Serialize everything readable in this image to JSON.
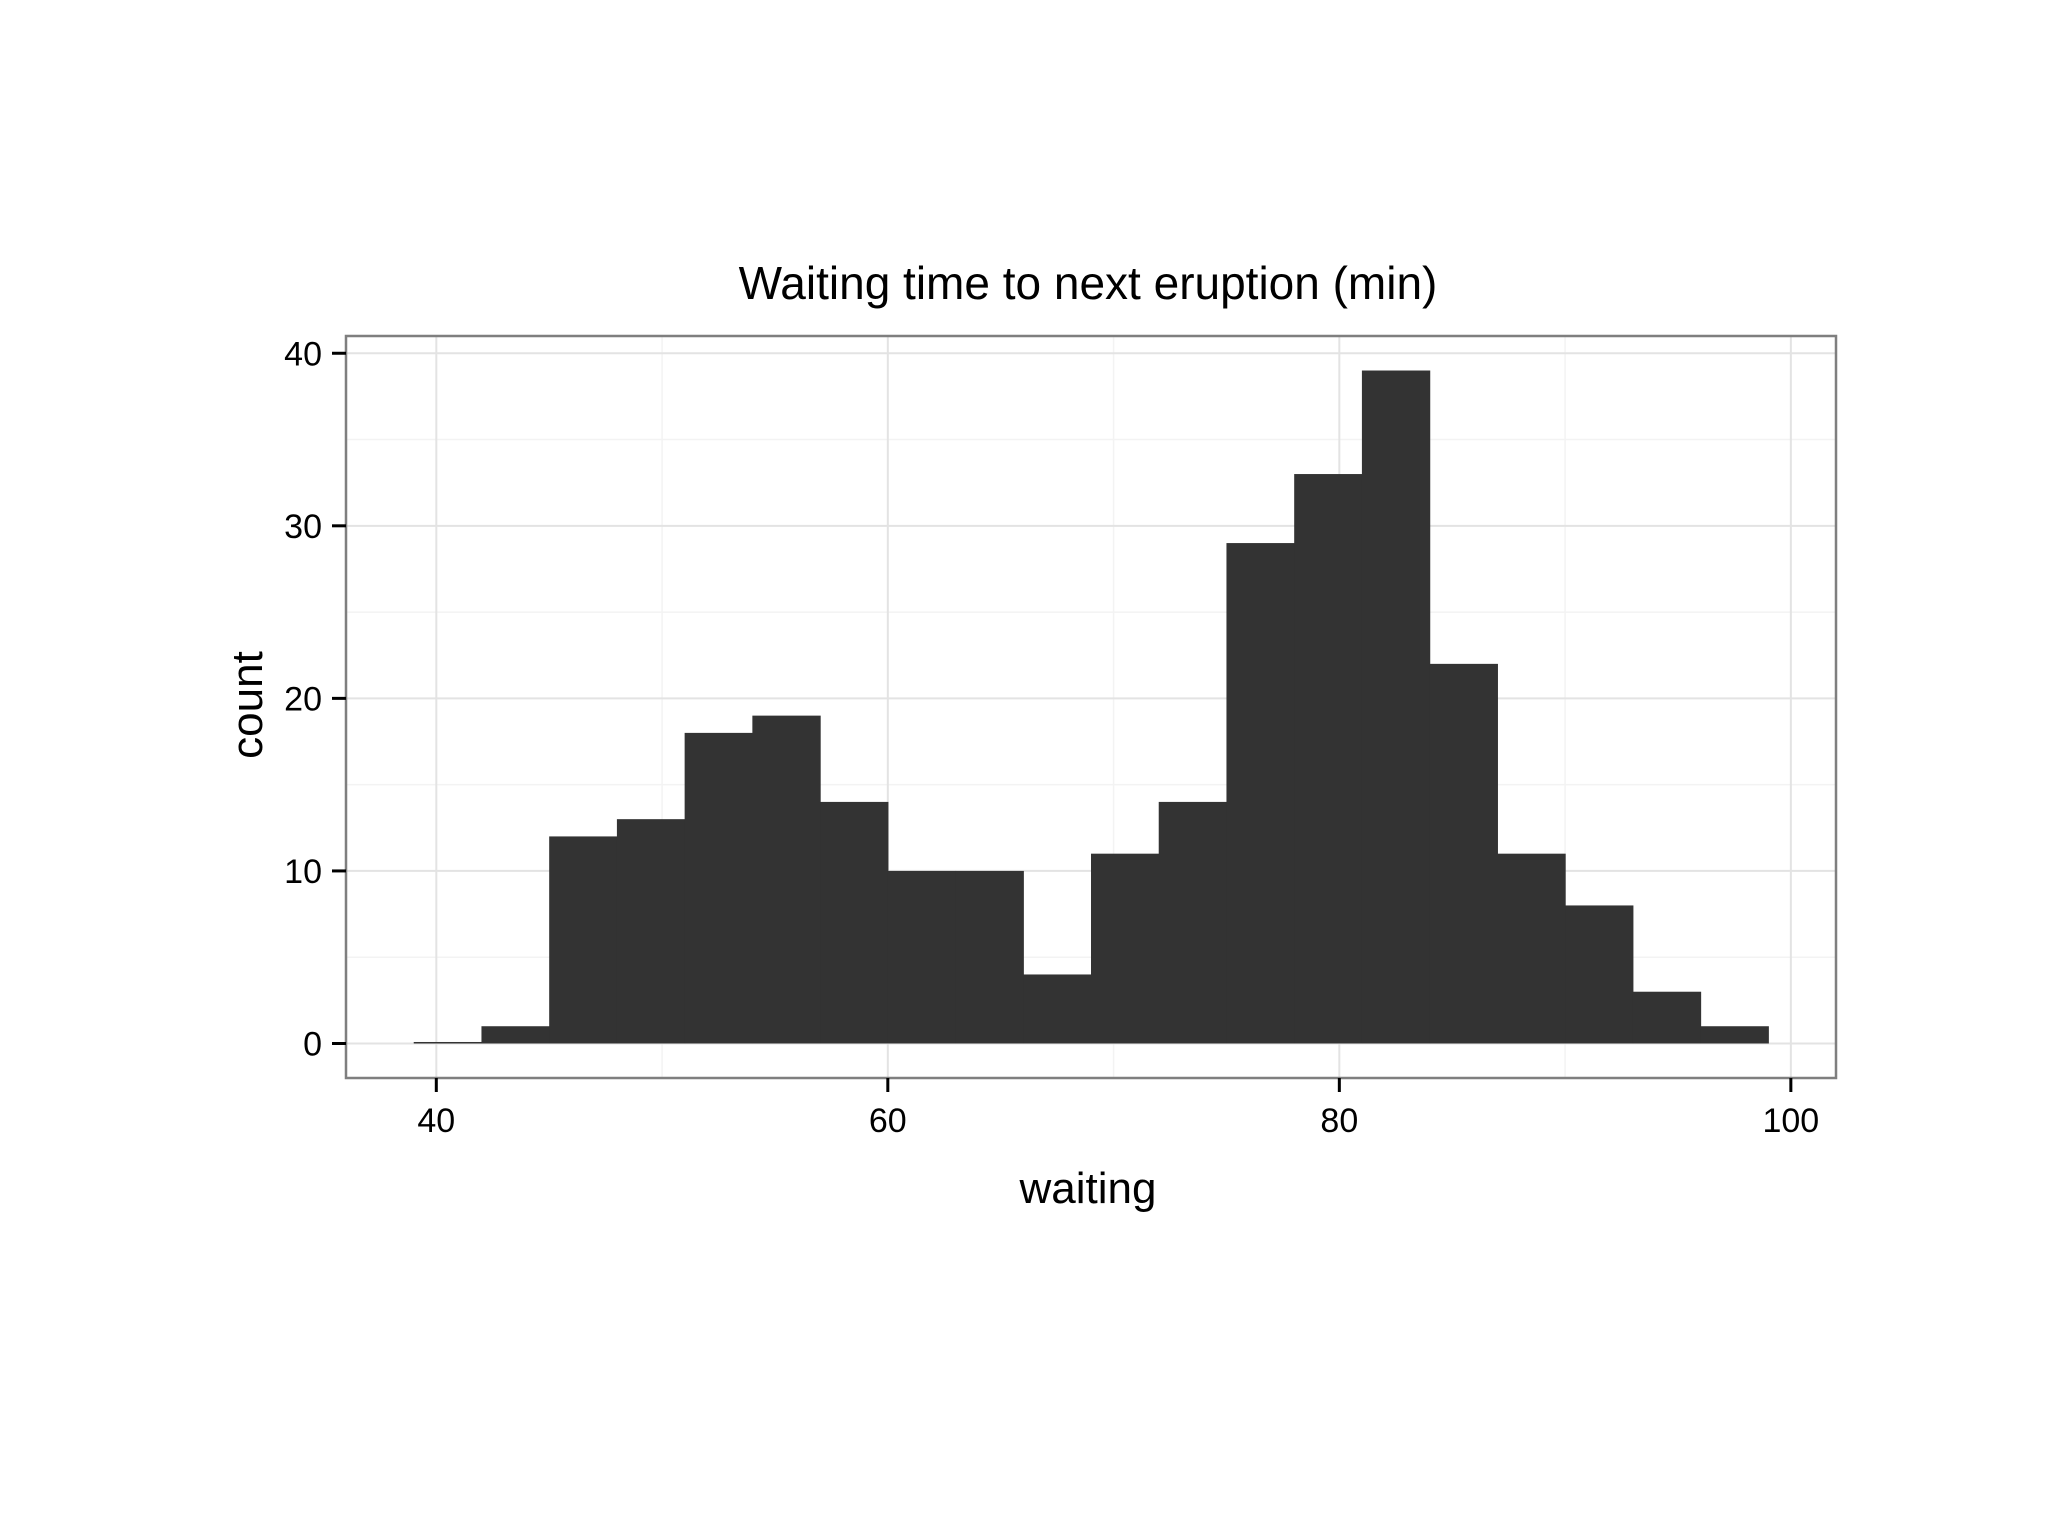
{
  "chart_data": {
    "type": "bar",
    "title": "Waiting time to next eruption (min)",
    "xlabel": "waiting",
    "ylabel": "count",
    "xlim": [
      36,
      102
    ],
    "ylim": [
      -2,
      41
    ],
    "x_ticks": [
      40,
      60,
      80,
      100
    ],
    "y_ticks": [
      0,
      10,
      20,
      30,
      40
    ],
    "grid": true,
    "bin_width": 3,
    "bins": [
      {
        "x0": 39,
        "x1": 42,
        "count": 0
      },
      {
        "x0": 42,
        "x1": 45,
        "count": 1
      },
      {
        "x0": 45,
        "x1": 48,
        "count": 12
      },
      {
        "x0": 48,
        "x1": 51,
        "count": 13
      },
      {
        "x0": 51,
        "x1": 54,
        "count": 18
      },
      {
        "x0": 54,
        "x1": 57,
        "count": 19
      },
      {
        "x0": 57,
        "x1": 60,
        "count": 14
      },
      {
        "x0": 60,
        "x1": 63,
        "count": 10
      },
      {
        "x0": 63,
        "x1": 66,
        "count": 10
      },
      {
        "x0": 66,
        "x1": 69,
        "count": 4
      },
      {
        "x0": 69,
        "x1": 72,
        "count": 11
      },
      {
        "x0": 72,
        "x1": 75,
        "count": 14
      },
      {
        "x0": 75,
        "x1": 78,
        "count": 29
      },
      {
        "x0": 78,
        "x1": 81,
        "count": 33
      },
      {
        "x0": 81,
        "x1": 84,
        "count": 39
      },
      {
        "x0": 84,
        "x1": 87,
        "count": 22
      },
      {
        "x0": 87,
        "x1": 90,
        "count": 11
      },
      {
        "x0": 90,
        "x1": 93,
        "count": 8
      },
      {
        "x0": 93,
        "x1": 96,
        "count": 3
      },
      {
        "x0": 96,
        "x1": 99,
        "count": 1
      }
    ],
    "bar_color": "#333333",
    "panel_border_color": "#7f7f7f",
    "grid_major_color": "#e3e3e3",
    "grid_minor_color": "#f3f3f3"
  }
}
